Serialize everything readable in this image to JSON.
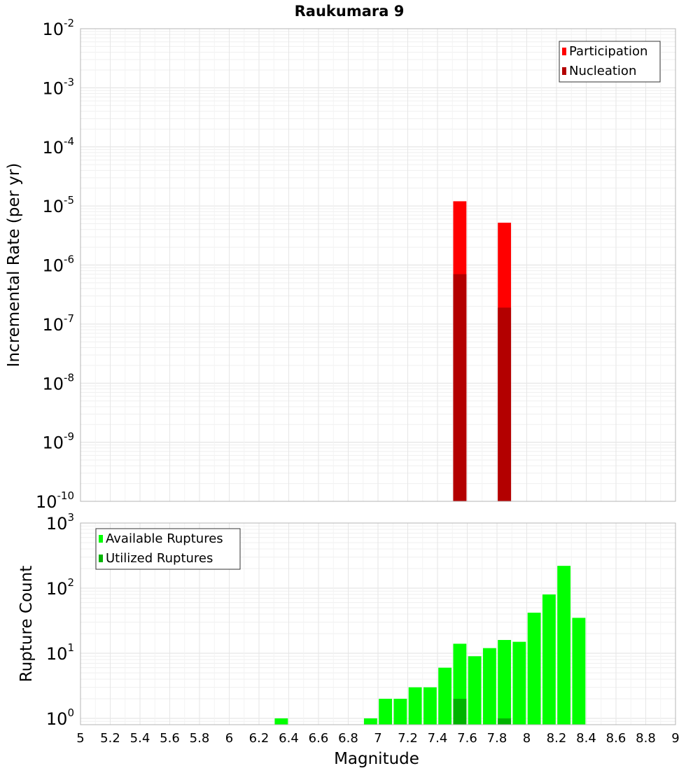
{
  "chart_data": [
    {
      "type": "bar",
      "title": "Raukumara 9",
      "xlabel": "",
      "ylabel": "Incremental Rate (per yr)",
      "y_scale": "log",
      "ylim": [
        1e-10,
        0.01
      ],
      "xlim": [
        5,
        9
      ],
      "y_tick_labels": [
        {
          "value": 1e-10,
          "base": "10",
          "exp": "-10"
        },
        {
          "value": 1e-09,
          "base": "10",
          "exp": "-9"
        },
        {
          "value": 1e-08,
          "base": "10",
          "exp": "-8"
        },
        {
          "value": 1e-07,
          "base": "10",
          "exp": "-7"
        },
        {
          "value": 1e-06,
          "base": "10",
          "exp": "-6"
        },
        {
          "value": 1e-05,
          "base": "10",
          "exp": "-5"
        },
        {
          "value": 0.0001,
          "base": "10",
          "exp": "-4"
        },
        {
          "value": 0.001,
          "base": "10",
          "exp": "-3"
        },
        {
          "value": 0.01,
          "base": "10",
          "exp": "-2"
        }
      ],
      "legend_position": "top-right",
      "grid": true,
      "bar_width": 0.1,
      "series": [
        {
          "name": "Participation",
          "color": "#ff0000",
          "x": [
            7.55,
            7.85
          ],
          "values": [
            1.2e-05,
            5.2e-06
          ]
        },
        {
          "name": "Nucleation",
          "color": "#b30000",
          "x": [
            7.55,
            7.85
          ],
          "values": [
            7e-07,
            1.9e-07
          ]
        }
      ]
    },
    {
      "type": "bar",
      "title": "",
      "xlabel": "Magnitude",
      "ylabel": "Rupture Count",
      "y_scale": "log",
      "ylim": [
        0.8,
        1000
      ],
      "xlim": [
        5,
        9
      ],
      "y_tick_labels": [
        {
          "value": 1,
          "base": "10",
          "exp": "0"
        },
        {
          "value": 10,
          "base": "10",
          "exp": "1"
        },
        {
          "value": 100,
          "base": "10",
          "exp": "2"
        },
        {
          "value": 1000,
          "base": "10",
          "exp": "3"
        }
      ],
      "x_tick_labels": [
        "5",
        "5.2",
        "5.4",
        "5.6",
        "5.8",
        "6",
        "6.2",
        "6.4",
        "6.6",
        "6.8",
        "7",
        "7.2",
        "7.4",
        "7.6",
        "7.8",
        "8",
        "8.2",
        "8.4",
        "8.6",
        "8.8",
        "9"
      ],
      "legend_position": "top-left",
      "grid": true,
      "bar_width": 0.1,
      "series": [
        {
          "name": "Available Ruptures",
          "color": "#00ff00",
          "x": [
            6.35,
            6.95,
            7.05,
            7.15,
            7.25,
            7.35,
            7.45,
            7.55,
            7.65,
            7.75,
            7.85,
            7.95,
            8.05,
            8.15,
            8.25,
            8.35
          ],
          "values": [
            1,
            1,
            2,
            2,
            3,
            3,
            6,
            14,
            9,
            12,
            16,
            15,
            42,
            80,
            220,
            35
          ]
        },
        {
          "name": "Utilized Ruptures",
          "color": "#00b300",
          "x": [
            7.55,
            7.85
          ],
          "values": [
            2,
            1
          ]
        }
      ]
    }
  ]
}
